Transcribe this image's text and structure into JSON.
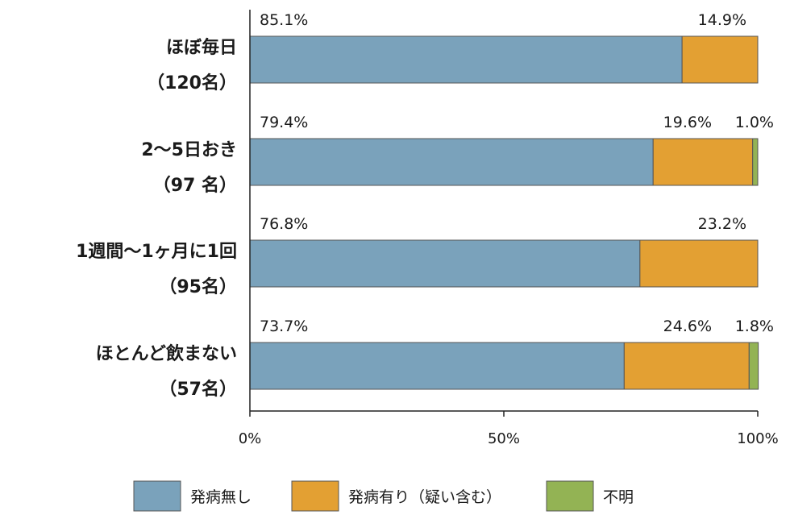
{
  "chart_data": {
    "type": "bar",
    "orientation": "horizontal",
    "stacked": true,
    "percent": true,
    "categories": [
      {
        "line1": "ほぼ毎日",
        "line2": "（120名）"
      },
      {
        "line1": "2～5日おき",
        "line2": "（97 名）"
      },
      {
        "line1": "1週間～1ヶ月に1回",
        "line2": "（95名）"
      },
      {
        "line1": "ほとんど飲まない",
        "line2": "（57名）"
      }
    ],
    "series": [
      {
        "name": "発病無し",
        "color": "#7aa2bb",
        "values": [
          85.1,
          79.4,
          76.8,
          73.7
        ]
      },
      {
        "name": "発病有り（疑い含む）",
        "color": "#e3a033",
        "values": [
          14.9,
          19.6,
          23.2,
          24.6
        ]
      },
      {
        "name": "不明",
        "color": "#93b354",
        "values": [
          0,
          1.0,
          0,
          1.8
        ]
      }
    ],
    "data_labels": [
      [
        "85.1%",
        "14.9%",
        ""
      ],
      [
        "79.4%",
        "19.6%",
        "1.0%"
      ],
      [
        "76.8%",
        "23.2%",
        ""
      ],
      [
        "73.7%",
        "24.6%",
        "1.8%"
      ]
    ],
    "x_ticks": [
      "0%",
      "50%",
      "100%"
    ],
    "xlim": [
      0,
      100
    ],
    "grid": false,
    "legend_position": "bottom"
  }
}
